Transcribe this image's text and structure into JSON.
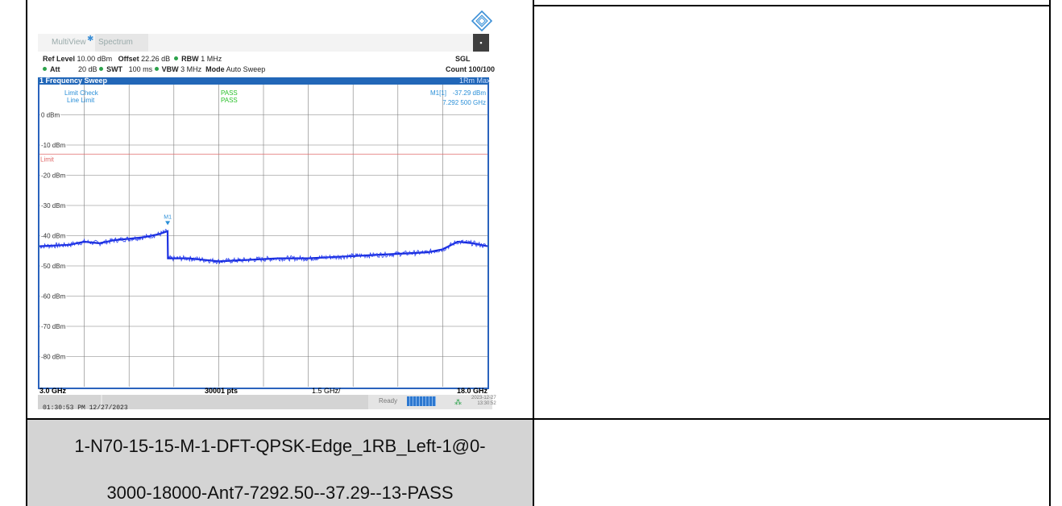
{
  "caption": {
    "line1": "1-N70-15-15-M-1-DFT-QPSK-Edge_1RB_Left-1@0-",
    "line2": "3000-18000-Ant7-7292.50--37.29--13-PASS"
  },
  "screenshot_timestamp": "01:30:53 PM 12/27/2023",
  "tabs": {
    "multiview": "MultiView",
    "spectrum": "Spectrum"
  },
  "header": {
    "ref_level_label": "Ref Level",
    "ref_level_value": "10.00 dBm",
    "offset_label": "Offset",
    "offset_value": "22.26 dB",
    "rbw_label": "RBW",
    "rbw_value": "1 MHz",
    "att_label": "Att",
    "att_value": "20 dB",
    "swt_label": "SWT",
    "swt_value": "100 ms",
    "vbw_label": "VBW",
    "vbw_value": "3 MHz",
    "mode_label": "Mode",
    "mode_value": "Auto Sweep",
    "sgl": "SGL",
    "count": "Count 100/100"
  },
  "sweep": {
    "title": "1 Frequency Sweep",
    "trace": "1Rm Max"
  },
  "limit_check": {
    "label": "Limit Check",
    "line_label": "Line Limit",
    "result": "PASS",
    "line_result": "PASS"
  },
  "marker": {
    "name": "M1",
    "readout_label": "M1[1]",
    "level": "-37.29 dBm",
    "freq": "7.292 500 GHz"
  },
  "limit_label": "Limit",
  "x_footer": {
    "start": "3.0 GHz",
    "points": "30001 pts",
    "div": "1.5 GHz/",
    "stop": "18.0 GHz"
  },
  "status": {
    "ready": "Ready",
    "date": "2023-12-27",
    "time": "13:30:52"
  },
  "chart_data": {
    "type": "line",
    "xlim": [
      3.0,
      18.0
    ],
    "ylim": [
      -90,
      10
    ],
    "y_ticks": [
      "0 dBm",
      "-10 dBm",
      "-20 dBm",
      "-30 dBm",
      "-40 dBm",
      "-50 dBm",
      "-60 dBm",
      "-70 dBm",
      "-80 dBm"
    ],
    "limit_line_dbm": -13,
    "marker": {
      "x": 7.2925,
      "y": -37.29
    },
    "series": [
      {
        "x": [
          3.0,
          4.0,
          4.5,
          5.0,
          5.5,
          6.0,
          6.5,
          7.0,
          7.29,
          7.3,
          8.0,
          9.0,
          10.0,
          11.0,
          12.0,
          13.0,
          14.0,
          15.0,
          16.0,
          16.5,
          17.0,
          17.5,
          18.0
        ],
        "y": [
          -43.5,
          -43.0,
          -42.0,
          -42.5,
          -41.5,
          -41.0,
          -40.5,
          -39.5,
          -38.5,
          -47.5,
          -47.5,
          -48.5,
          -48.0,
          -47.5,
          -47.5,
          -47.0,
          -46.5,
          -46.0,
          -45.5,
          -44.5,
          -42.0,
          -42.5,
          -43.5
        ]
      }
    ]
  }
}
